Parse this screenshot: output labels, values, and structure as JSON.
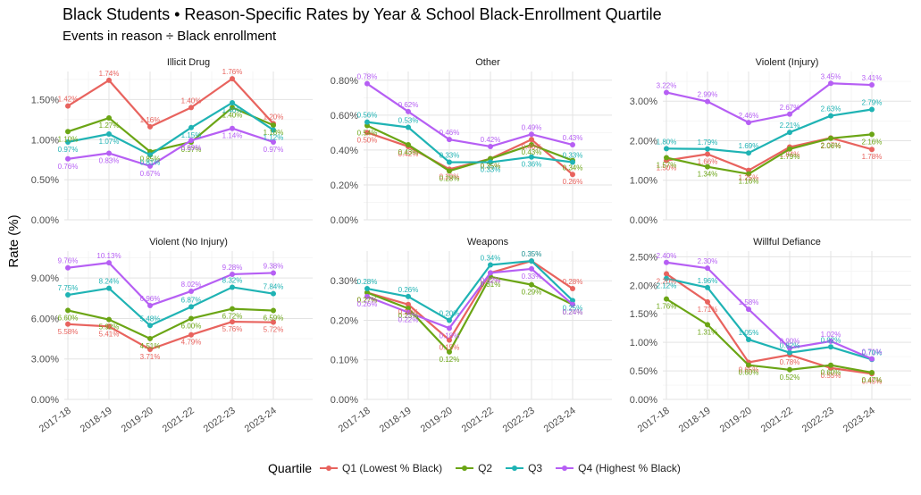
{
  "title": "Black Students • Reason-Specific Rates by Year & School Black-Enrollment Quartile",
  "subtitle": "Events in reason ÷ Black enrollment",
  "chart_data": {
    "type": "line",
    "ylabel": "Rate (%)",
    "categories": [
      "2017-18",
      "2018-19",
      "2019-20",
      "2021-22",
      "2022-23",
      "2023-24"
    ],
    "legend": {
      "title": "Quartile",
      "position": "bottom",
      "entries": [
        {
          "name": "Q1 (Lowest % Black)",
          "color": "#E8635E"
        },
        {
          "name": "Q2",
          "color": "#6BA515"
        },
        {
          "name": "Q3",
          "color": "#1FB3B4"
        },
        {
          "name": "Q4 (Highest % Black)",
          "color": "#B65FF4"
        }
      ]
    },
    "grid": true,
    "panels": [
      {
        "title": "Illicit Drug",
        "ylim": [
          0,
          1.85
        ],
        "yticks": [
          "0.00%",
          "0.50%",
          "1.00%",
          "1.50%"
        ],
        "ytick_values": [
          0,
          0.5,
          1.0,
          1.5
        ],
        "series": [
          {
            "name": "Q1 (Lowest % Black)",
            "values": [
              1.42,
              1.74,
              1.16,
              1.4,
              1.76,
              1.2
            ],
            "labels": [
              "1.42%",
              "1.74%",
              "1.16%",
              "1.40%",
              "1.76%",
              "1.20%"
            ]
          },
          {
            "name": "Q2",
            "values": [
              1.1,
              1.27,
              0.85,
              0.97,
              1.4,
              1.18
            ],
            "labels": [
              "1.10%",
              "1.27%",
              "0.85%",
              "0.97%",
              "1.40%",
              "1.18%"
            ]
          },
          {
            "name": "Q3",
            "values": [
              0.97,
              1.07,
              0.81,
              1.15,
              1.46,
              1.12
            ],
            "labels": [
              "0.97%",
              "1.07%",
              "0.81%",
              "1.15%",
              "1.46%",
              "1.12%"
            ]
          },
          {
            "name": "Q4 (Highest % Black)",
            "values": [
              0.76,
              0.83,
              0.67,
              0.99,
              1.14,
              0.97
            ],
            "labels": [
              "0.76%",
              "0.83%",
              "0.67%",
              "0.99%",
              "1.14%",
              "0.97%"
            ]
          }
        ]
      },
      {
        "title": "Other",
        "ylim": [
          0,
          0.85
        ],
        "yticks": [
          "0.00%",
          "0.20%",
          "0.40%",
          "0.60%",
          "0.80%"
        ],
        "ytick_values": [
          0,
          0.2,
          0.4,
          0.6,
          0.8
        ],
        "series": [
          {
            "name": "Q1 (Lowest % Black)",
            "values": [
              0.5,
              0.42,
              0.29,
              0.35,
              0.46,
              0.26
            ],
            "labels": [
              "0.50%",
              "0.42%",
              "0.29%",
              "0.35%",
              "0.46%",
              "0.26%"
            ]
          },
          {
            "name": "Q2",
            "values": [
              0.54,
              0.43,
              0.28,
              0.35,
              0.43,
              0.34
            ],
            "labels": [
              "0.54%",
              "0.43%",
              "0.28%",
              "0.35%",
              "0.43%",
              "0.34%"
            ]
          },
          {
            "name": "Q3",
            "values": [
              0.56,
              0.53,
              0.33,
              0.33,
              0.36,
              0.33
            ],
            "labels": [
              "0.56%",
              "0.53%",
              "0.33%",
              "0.33%",
              "0.36%",
              "0.33%"
            ]
          },
          {
            "name": "Q4 (Highest % Black)",
            "values": [
              0.78,
              0.62,
              0.46,
              0.42,
              0.49,
              0.43
            ],
            "labels": [
              "0.78%",
              "0.62%",
              "0.46%",
              "0.42%",
              "0.49%",
              "0.43%"
            ]
          }
        ]
      },
      {
        "title": "Violent (Injury)",
        "ylim": [
          0,
          3.75
        ],
        "yticks": [
          "0.00%",
          "1.00%",
          "2.00%",
          "3.00%"
        ],
        "ytick_values": [
          0,
          1.0,
          2.0,
          3.0
        ],
        "series": [
          {
            "name": "Q1 (Lowest % Black)",
            "values": [
              1.5,
              1.66,
              1.25,
              1.84,
              2.07,
              1.78
            ],
            "labels": [
              "1.50%",
              "1.66%",
              "1.25%",
              "1.84%",
              "2.07%",
              "1.78%"
            ]
          },
          {
            "name": "Q2",
            "values": [
              1.57,
              1.34,
              1.16,
              1.79,
              2.06,
              2.16
            ],
            "labels": [
              "1.57%",
              "1.34%",
              "1.16%",
              "1.79%",
              "2.06%",
              "2.16%"
            ]
          },
          {
            "name": "Q3",
            "values": [
              1.8,
              1.79,
              1.69,
              2.21,
              2.63,
              2.79
            ],
            "labels": [
              "1.80%",
              "1.79%",
              "1.69%",
              "2.21%",
              "2.63%",
              "2.79%"
            ]
          },
          {
            "name": "Q4 (Highest % Black)",
            "values": [
              3.22,
              2.99,
              2.46,
              2.67,
              3.45,
              3.41
            ],
            "labels": [
              "3.22%",
              "2.99%",
              "2.46%",
              "2.67%",
              "3.45%",
              "3.41%"
            ]
          }
        ]
      },
      {
        "title": "Violent (No Injury)",
        "ylim": [
          0,
          11.0
        ],
        "yticks": [
          "0.00%",
          "3.00%",
          "6.00%",
          "9.00%"
        ],
        "ytick_values": [
          0,
          3.0,
          6.0,
          9.0
        ],
        "series": [
          {
            "name": "Q1 (Lowest % Black)",
            "values": [
              5.58,
              5.41,
              3.71,
              4.79,
              5.76,
              5.72
            ],
            "labels": [
              "5.58%",
              "5.41%",
              "3.71%",
              "4.79%",
              "5.76%",
              "5.72%"
            ]
          },
          {
            "name": "Q2",
            "values": [
              6.6,
              5.92,
              4.51,
              6.0,
              6.72,
              6.59
            ],
            "labels": [
              "6.60%",
              "5.92%",
              "4.51%",
              "6.00%",
              "6.72%",
              "6.59%"
            ]
          },
          {
            "name": "Q3",
            "values": [
              7.75,
              8.24,
              5.48,
              6.87,
              8.32,
              7.84
            ],
            "labels": [
              "7.75%",
              "8.24%",
              "5.48%",
              "6.87%",
              "8.32%",
              "7.84%"
            ]
          },
          {
            "name": "Q4 (Highest % Black)",
            "values": [
              9.76,
              10.13,
              6.96,
              8.02,
              9.28,
              9.38
            ],
            "labels": [
              "9.76%",
              "10.13%",
              "6.96%",
              "8.02%",
              "9.28%",
              "9.38%"
            ]
          }
        ]
      },
      {
        "title": "Weapons",
        "ylim": [
          0,
          0.375
        ],
        "yticks": [
          "0.00%",
          "0.10%",
          "0.20%",
          "0.30%"
        ],
        "ytick_values": [
          0,
          0.1,
          0.2,
          0.3
        ],
        "series": [
          {
            "name": "Q1 (Lowest % Black)",
            "values": [
              0.27,
              0.24,
              0.15,
              0.32,
              0.35,
              0.28
            ],
            "labels": [
              "0.27%",
              "0.24%",
              "0.15%",
              "0.32%",
              "0.35%",
              "0.28%"
            ]
          },
          {
            "name": "Q2",
            "values": [
              0.27,
              0.23,
              0.12,
              0.31,
              0.29,
              0.24
            ],
            "labels": [
              "0.27%",
              "0.23%",
              "0.12%",
              "0.31%",
              "0.29%",
              "0.24%"
            ]
          },
          {
            "name": "Q3",
            "values": [
              0.28,
              0.26,
              0.2,
              0.34,
              0.35,
              0.25
            ],
            "labels": [
              "0.28%",
              "0.26%",
              "0.20%",
              "0.34%",
              "0.35%",
              "0.25%"
            ]
          },
          {
            "name": "Q4 (Highest % Black)",
            "values": [
              0.26,
              0.22,
              0.18,
              0.32,
              0.33,
              0.24
            ],
            "labels": [
              "0.26%",
              "0.22%",
              "0.18%",
              "0.32%",
              "0.33%",
              "0.24%"
            ]
          }
        ]
      },
      {
        "title": "Willful Defiance",
        "ylim": [
          0,
          2.6
        ],
        "yticks": [
          "0.00%",
          "0.50%",
          "1.00%",
          "1.50%",
          "2.00%",
          "2.50%"
        ],
        "ytick_values": [
          0,
          0.5,
          1.0,
          1.5,
          2.0,
          2.5
        ],
        "series": [
          {
            "name": "Q1 (Lowest % Black)",
            "values": [
              2.2,
              1.71,
              0.65,
              0.78,
              0.55,
              0.45
            ],
            "labels": [
              "2.20%",
              "1.71%",
              "0.65%",
              "0.78%",
              "0.55%",
              "0.45%"
            ]
          },
          {
            "name": "Q2",
            "values": [
              1.76,
              1.31,
              0.6,
              0.52,
              0.6,
              0.47
            ],
            "labels": [
              "1.76%",
              "1.31%",
              "0.60%",
              "0.52%",
              "0.60%",
              "0.47%"
            ]
          },
          {
            "name": "Q3",
            "values": [
              2.12,
              1.96,
              1.05,
              0.82,
              0.92,
              0.7
            ],
            "labels": [
              "2.12%",
              "1.96%",
              "1.05%",
              "0.82%",
              "0.92%",
              "0.70%"
            ]
          },
          {
            "name": "Q4 (Highest % Black)",
            "values": [
              2.4,
              2.3,
              1.58,
              0.9,
              1.02,
              0.71
            ],
            "labels": [
              "2.40%",
              "2.30%",
              "1.58%",
              "0.90%",
              "1.02%",
              "0.71%"
            ]
          }
        ]
      }
    ]
  }
}
